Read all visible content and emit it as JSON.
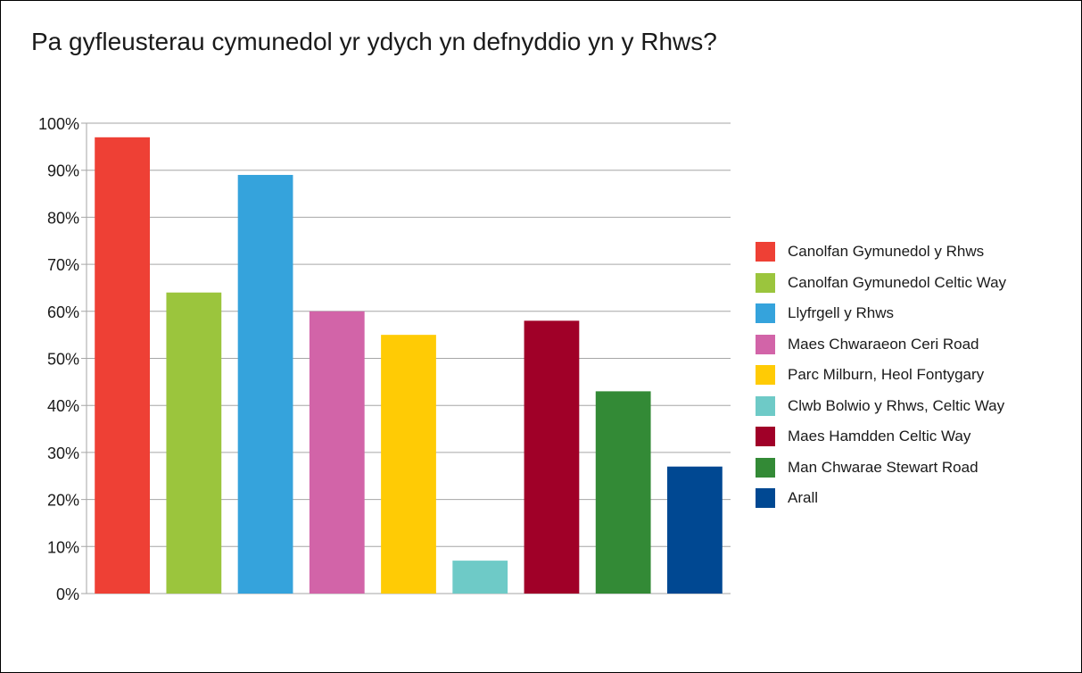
{
  "chart_data": {
    "type": "bar",
    "title": "Pa gyfleusterau cymunedol yr ydych yn defnyddio yn y Rhws?",
    "xlabel": "",
    "ylabel": "",
    "ylim": [
      0,
      100
    ],
    "yticks": [
      "0%",
      "10%",
      "20%",
      "30%",
      "40%",
      "50%",
      "60%",
      "70%",
      "80%",
      "90%",
      "100%"
    ],
    "grid": true,
    "legend_position": "right",
    "categories": [
      "Canolfan Gymunedol y Rhws",
      "Canolfan Gymunedol Celtic Way",
      "Llyfrgell y Rhws",
      "Maes Chwaraeon Ceri Road",
      "Parc Milburn, Heol Fontygary",
      "Clwb Bolwio y Rhws, Celtic Way",
      "Maes Hamdden Celtic Way",
      "Man Chwarae Stewart Road",
      "Arall"
    ],
    "values": [
      97,
      64,
      89,
      60,
      55,
      7,
      58,
      43,
      27
    ],
    "colors": [
      "#ee4035",
      "#9bc53d",
      "#35a3dc",
      "#d264a8",
      "#ffcb05",
      "#6ecac7",
      "#a00028",
      "#338a36",
      "#004892"
    ]
  }
}
